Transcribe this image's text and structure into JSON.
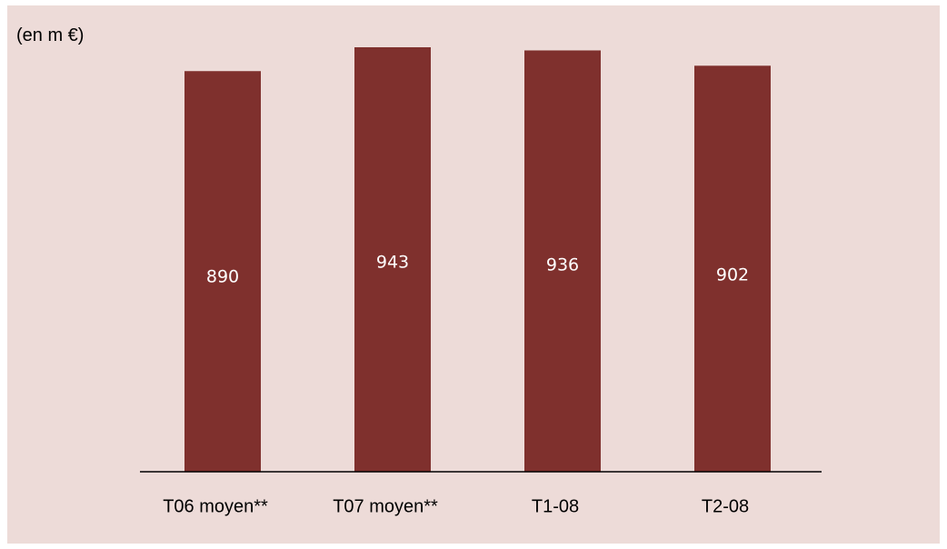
{
  "chart_data": {
    "type": "bar",
    "unit_label": "(en m €)",
    "categories": [
      "T06 moyen**",
      "T07 moyen**",
      "T1-08",
      "T2-08"
    ],
    "values": [
      890,
      943,
      936,
      902
    ],
    "value_labels": [
      "890",
      "943",
      "936",
      "902"
    ],
    "ylim": [
      0,
      943
    ],
    "grid": false,
    "legend": false,
    "colors": {
      "bar": "#7f302d",
      "background": "#eddbd8",
      "axis": "#000000",
      "label": "#ffffff"
    }
  }
}
